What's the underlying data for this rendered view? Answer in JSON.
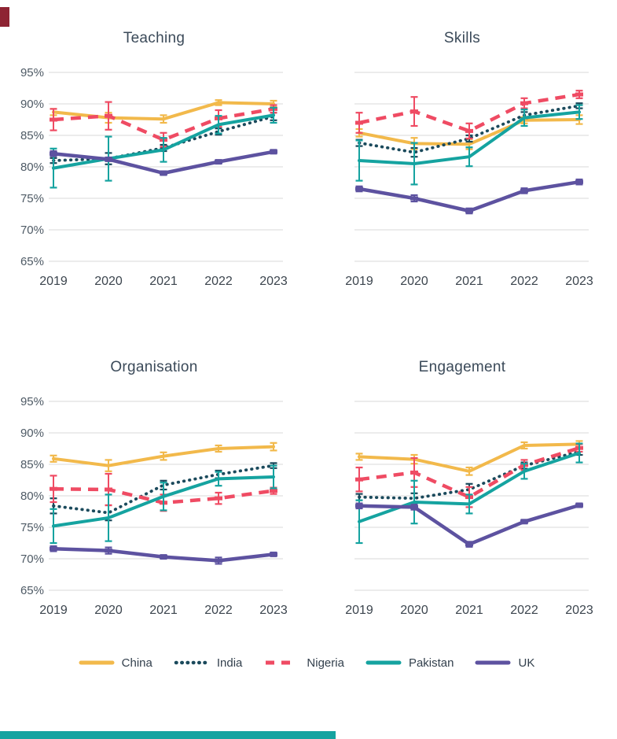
{
  "page": {
    "background": "#ffffff",
    "grid_color": "#dadada",
    "title_color": "#3b4a59",
    "tick_color": "#4e5a65",
    "year_color": "#3c454e"
  },
  "artifacts": {
    "top_left_clipped_color": "#8e2433",
    "bottom_bar_clipped_color": "#15a3a0"
  },
  "axes": {
    "x_labels": [
      "2019",
      "2020",
      "2021",
      "2022",
      "2023"
    ],
    "y_labels": [
      "95%",
      "90%",
      "85%",
      "80%",
      "75%",
      "70%",
      "65%"
    ],
    "y_tick_values": [
      95,
      90,
      85,
      80,
      75,
      70,
      65
    ]
  },
  "legend": {
    "items": [
      {
        "label": "China",
        "color": "#f2b94b",
        "style": "solid"
      },
      {
        "label": "India",
        "color": "#1b4a5c",
        "style": "dotted"
      },
      {
        "label": "Nigeria",
        "color": "#ef4b63",
        "style": "dashed"
      },
      {
        "label": "Pakistan",
        "color": "#15a3a0",
        "style": "solid"
      },
      {
        "label": "UK",
        "color": "#5d52a0",
        "style": "solid"
      }
    ]
  },
  "chart_data": [
    {
      "type": "line",
      "title": "Teaching",
      "x": [
        2019,
        2020,
        2021,
        2022,
        2023
      ],
      "ylim": [
        65,
        95
      ],
      "show_y_labels": true,
      "grid": true,
      "series": [
        {
          "name": "China",
          "values": [
            88.7,
            87.8,
            87.6,
            90.2,
            90.0
          ],
          "errors": [
            0.5,
            0.8,
            0.6,
            0.4,
            0.5
          ]
        },
        {
          "name": "India",
          "values": [
            81.0,
            81.3,
            83.0,
            85.6,
            88.0
          ],
          "errors": [
            0.4,
            0.9,
            0.5,
            0.5,
            0.6
          ]
        },
        {
          "name": "Nigeria",
          "values": [
            87.5,
            88.1,
            84.3,
            87.7,
            89.2
          ],
          "errors": [
            1.7,
            2.2,
            1.1,
            1.3,
            0.6
          ]
        },
        {
          "name": "Pakistan",
          "values": [
            79.8,
            81.3,
            82.7,
            86.7,
            88.2
          ],
          "errors": [
            3.1,
            3.5,
            1.9,
            1.4,
            1.2
          ]
        },
        {
          "name": "UK",
          "values": [
            82.1,
            81.2,
            79.0,
            80.8,
            82.4
          ],
          "errors": [
            0.4,
            0.3,
            0.3,
            0.3,
            0.3
          ]
        }
      ]
    },
    {
      "type": "line",
      "title": "Skills",
      "x": [
        2019,
        2020,
        2021,
        2022,
        2023
      ],
      "ylim": [
        65,
        95
      ],
      "show_y_labels": false,
      "grid": true,
      "series": [
        {
          "name": "China",
          "values": [
            85.4,
            83.7,
            83.6,
            87.4,
            87.5
          ],
          "errors": [
            0.6,
            0.9,
            0.8,
            0.5,
            0.7
          ]
        },
        {
          "name": "India",
          "values": [
            83.8,
            82.3,
            84.5,
            88.2,
            89.7
          ],
          "errors": [
            0.5,
            0.7,
            0.5,
            0.5,
            0.4
          ]
        },
        {
          "name": "Nigeria",
          "values": [
            87.0,
            88.8,
            85.7,
            90.1,
            91.5
          ],
          "errors": [
            1.6,
            2.3,
            1.2,
            0.8,
            0.6
          ]
        },
        {
          "name": "Pakistan",
          "values": [
            81.0,
            80.5,
            81.6,
            87.8,
            88.7
          ],
          "errors": [
            3.2,
            3.3,
            1.5,
            1.3,
            1.1
          ]
        },
        {
          "name": "UK",
          "values": [
            76.5,
            75.0,
            73.0,
            76.2,
            77.6
          ],
          "errors": [
            0.4,
            0.5,
            0.4,
            0.4,
            0.4
          ]
        }
      ]
    },
    {
      "type": "line",
      "title": "Organisation",
      "x": [
        2019,
        2020,
        2021,
        2022,
        2023
      ],
      "ylim": [
        65,
        95
      ],
      "show_y_labels": true,
      "grid": true,
      "series": [
        {
          "name": "China",
          "values": [
            85.9,
            84.8,
            86.3,
            87.5,
            87.8
          ],
          "errors": [
            0.5,
            0.9,
            0.6,
            0.5,
            0.6
          ]
        },
        {
          "name": "India",
          "values": [
            78.4,
            77.3,
            81.7,
            83.4,
            84.8
          ],
          "errors": [
            1.2,
            1.2,
            0.7,
            0.6,
            0.4
          ]
        },
        {
          "name": "Nigeria",
          "values": [
            81.1,
            81.0,
            78.9,
            79.6,
            80.8
          ],
          "errors": [
            2.1,
            2.5,
            1.3,
            0.9,
            0.5
          ]
        },
        {
          "name": "Pakistan",
          "values": [
            75.2,
            76.5,
            79.9,
            82.7,
            83.0
          ],
          "errors": [
            2.7,
            3.7,
            2.2,
            1.1,
            1.8
          ]
        },
        {
          "name": "UK",
          "values": [
            71.6,
            71.3,
            70.3,
            69.7,
            70.7
          ],
          "errors": [
            0.4,
            0.5,
            0.3,
            0.5,
            0.3
          ]
        }
      ]
    },
    {
      "type": "line",
      "title": "Engagement",
      "x": [
        2019,
        2020,
        2021,
        2022,
        2023
      ],
      "ylim": [
        65,
        95
      ],
      "show_y_labels": false,
      "grid": true,
      "series": [
        {
          "name": "China",
          "values": [
            86.2,
            85.8,
            83.9,
            88.0,
            88.2
          ],
          "errors": [
            0.5,
            0.7,
            0.6,
            0.5,
            0.5
          ]
        },
        {
          "name": "India",
          "values": [
            79.8,
            79.6,
            81.0,
            84.8,
            87.0
          ],
          "errors": [
            0.5,
            0.8,
            0.9,
            0.5,
            0.5
          ]
        },
        {
          "name": "Nigeria",
          "values": [
            82.6,
            83.7,
            79.8,
            84.9,
            87.6
          ],
          "errors": [
            1.9,
            2.3,
            1.6,
            0.8,
            0.6
          ]
        },
        {
          "name": "Pakistan",
          "values": [
            75.9,
            79.0,
            78.7,
            83.9,
            86.8
          ],
          "errors": [
            3.4,
            3.4,
            1.5,
            1.2,
            1.5
          ]
        },
        {
          "name": "UK",
          "values": [
            78.4,
            78.2,
            72.3,
            75.9,
            78.5
          ],
          "errors": [
            0.4,
            0.4,
            0.4,
            0.3,
            0.3
          ]
        }
      ]
    }
  ]
}
